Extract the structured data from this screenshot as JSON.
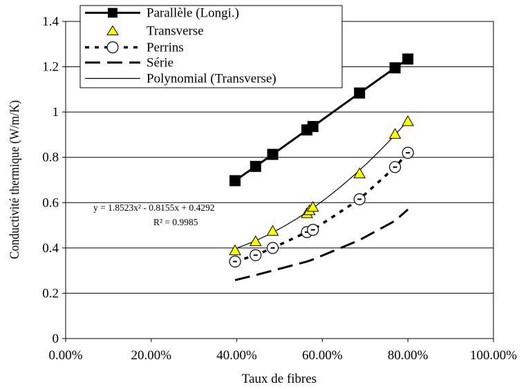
{
  "chart_data": {
    "type": "scatter",
    "xlabel": "Taux de fibres",
    "ylabel": "Conductivité thermique (W/m/K)",
    "xlim": [
      0,
      1
    ],
    "ylim": [
      0,
      1.4
    ],
    "x_ticks": [
      0,
      0.2,
      0.4,
      0.6,
      0.8,
      1.0
    ],
    "x_tick_labels": [
      "0.00%",
      "20.00%",
      "40.00%",
      "60.00%",
      "80.00%",
      "100.00%"
    ],
    "y_ticks": [
      0,
      0.2,
      0.4,
      0.6,
      0.8,
      1,
      1.2,
      1.4
    ],
    "y_tick_labels": [
      "0",
      "0.2",
      "0.4",
      "0.6",
      "0.8",
      "1",
      "1.2",
      "1.4"
    ],
    "grid": "horizontal",
    "legend_position": "top-left",
    "series": [
      {
        "name": "Parallèle (Longi.)",
        "marker": "square",
        "line": "solid-thick",
        "color": "#000000",
        "x": [
          0.396,
          0.444,
          0.484,
          0.564,
          0.578,
          0.687,
          0.77,
          0.8
        ],
        "y": [
          0.697,
          0.76,
          0.813,
          0.921,
          0.936,
          1.084,
          1.195,
          1.234
        ]
      },
      {
        "name": "Transverse",
        "marker": "triangle",
        "line": "none",
        "color": "#ffff00",
        "x": [
          0.396,
          0.444,
          0.484,
          0.564,
          0.57,
          0.578,
          0.687,
          0.77,
          0.8
        ],
        "y": [
          0.388,
          0.428,
          0.474,
          0.552,
          0.565,
          0.58,
          0.728,
          0.902,
          0.958
        ]
      },
      {
        "name": "Perrins",
        "marker": "circle",
        "line": "dotted",
        "color": "#000000",
        "x": [
          0.396,
          0.444,
          0.484,
          0.564,
          0.578,
          0.687,
          0.77,
          0.8
        ],
        "y": [
          0.34,
          0.368,
          0.4,
          0.47,
          0.48,
          0.615,
          0.757,
          0.82
        ]
      },
      {
        "name": "Série",
        "marker": "none",
        "line": "long-dash",
        "color": "#000000",
        "x": [
          0.396,
          0.444,
          0.484,
          0.564,
          0.578,
          0.687,
          0.77,
          0.8
        ],
        "y": [
          0.258,
          0.28,
          0.3,
          0.34,
          0.349,
          0.435,
          0.52,
          0.57
        ]
      },
      {
        "name": "Polynomial (Transverse)",
        "marker": "none",
        "line": "thin-solid",
        "color": "#000000",
        "fit": {
          "a": 1.8523,
          "b": -0.8155,
          "c": 0.4292,
          "x_from": 0.396,
          "x_to": 0.8
        }
      }
    ],
    "annotations": {
      "equation": "y = 1.8523x² - 0.8155x + 0.4292",
      "r_squared": "R² = 0.9985"
    }
  }
}
